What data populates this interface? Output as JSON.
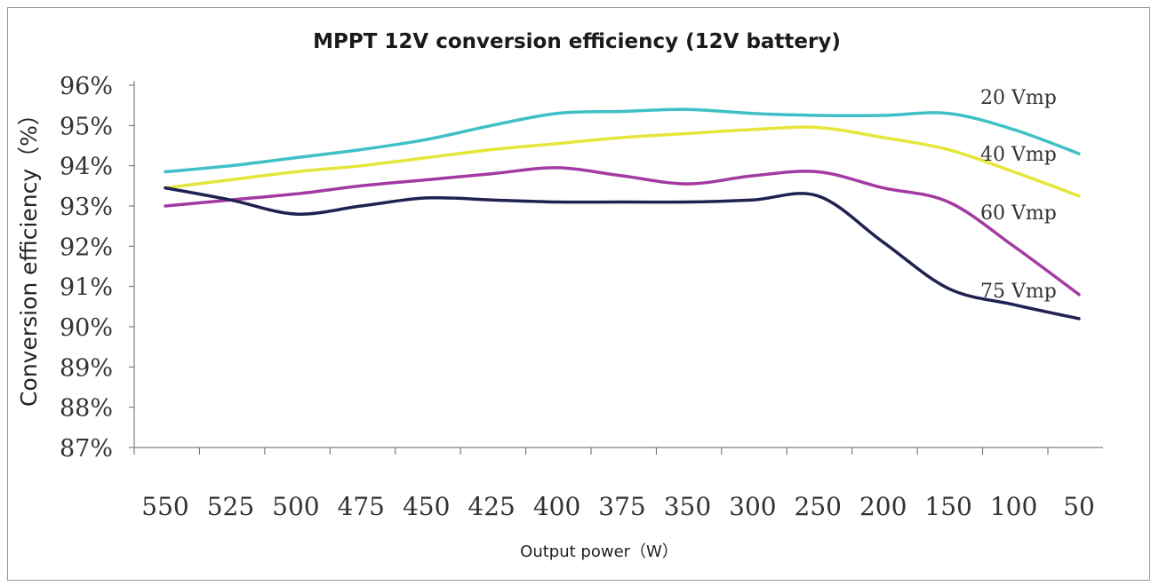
{
  "chart_data": {
    "type": "line",
    "title": "MPPT 12V conversion efficiency (12V battery)",
    "xlabel": "Output power（W）",
    "ylabel": "Conversion efficiency（%）",
    "x": [
      550,
      525,
      500,
      475,
      450,
      425,
      400,
      375,
      350,
      300,
      250,
      200,
      150,
      100,
      50
    ],
    "x_tick_labels": [
      "550",
      "525",
      "500",
      "475",
      "450",
      "425",
      "400",
      "375",
      "350",
      "300",
      "250",
      "200",
      "150",
      "100",
      "50"
    ],
    "y_tick_labels": [
      "87%",
      "88%",
      "89%",
      "90%",
      "91%",
      "92%",
      "93%",
      "94%",
      "95%",
      "96%"
    ],
    "ylim": [
      87,
      96
    ],
    "grid": false,
    "series": [
      {
        "name": "20 Vmp",
        "color": "#3fc0c6",
        "values": [
          93.85,
          94.0,
          94.2,
          94.4,
          94.65,
          95.0,
          95.3,
          95.35,
          95.4,
          95.3,
          95.25,
          95.25,
          95.3,
          94.9,
          94.3
        ]
      },
      {
        "name": "40 Vmp",
        "color": "#e4e63a",
        "values": [
          93.45,
          93.65,
          93.85,
          94.0,
          94.2,
          94.4,
          94.55,
          94.7,
          94.8,
          94.9,
          94.95,
          94.7,
          94.4,
          93.85,
          93.25
        ]
      },
      {
        "name": "60 Vmp",
        "color": "#a33aa3",
        "values": [
          93.0,
          93.15,
          93.3,
          93.5,
          93.65,
          93.8,
          93.95,
          93.75,
          93.55,
          93.75,
          93.85,
          93.45,
          93.1,
          92.0,
          90.8
        ]
      },
      {
        "name": "75 Vmp",
        "color": "#1f2150",
        "values": [
          93.45,
          93.15,
          92.8,
          93.0,
          93.2,
          93.15,
          93.1,
          93.1,
          93.1,
          93.15,
          93.25,
          92.1,
          90.95,
          90.55,
          90.2
        ]
      }
    ]
  }
}
